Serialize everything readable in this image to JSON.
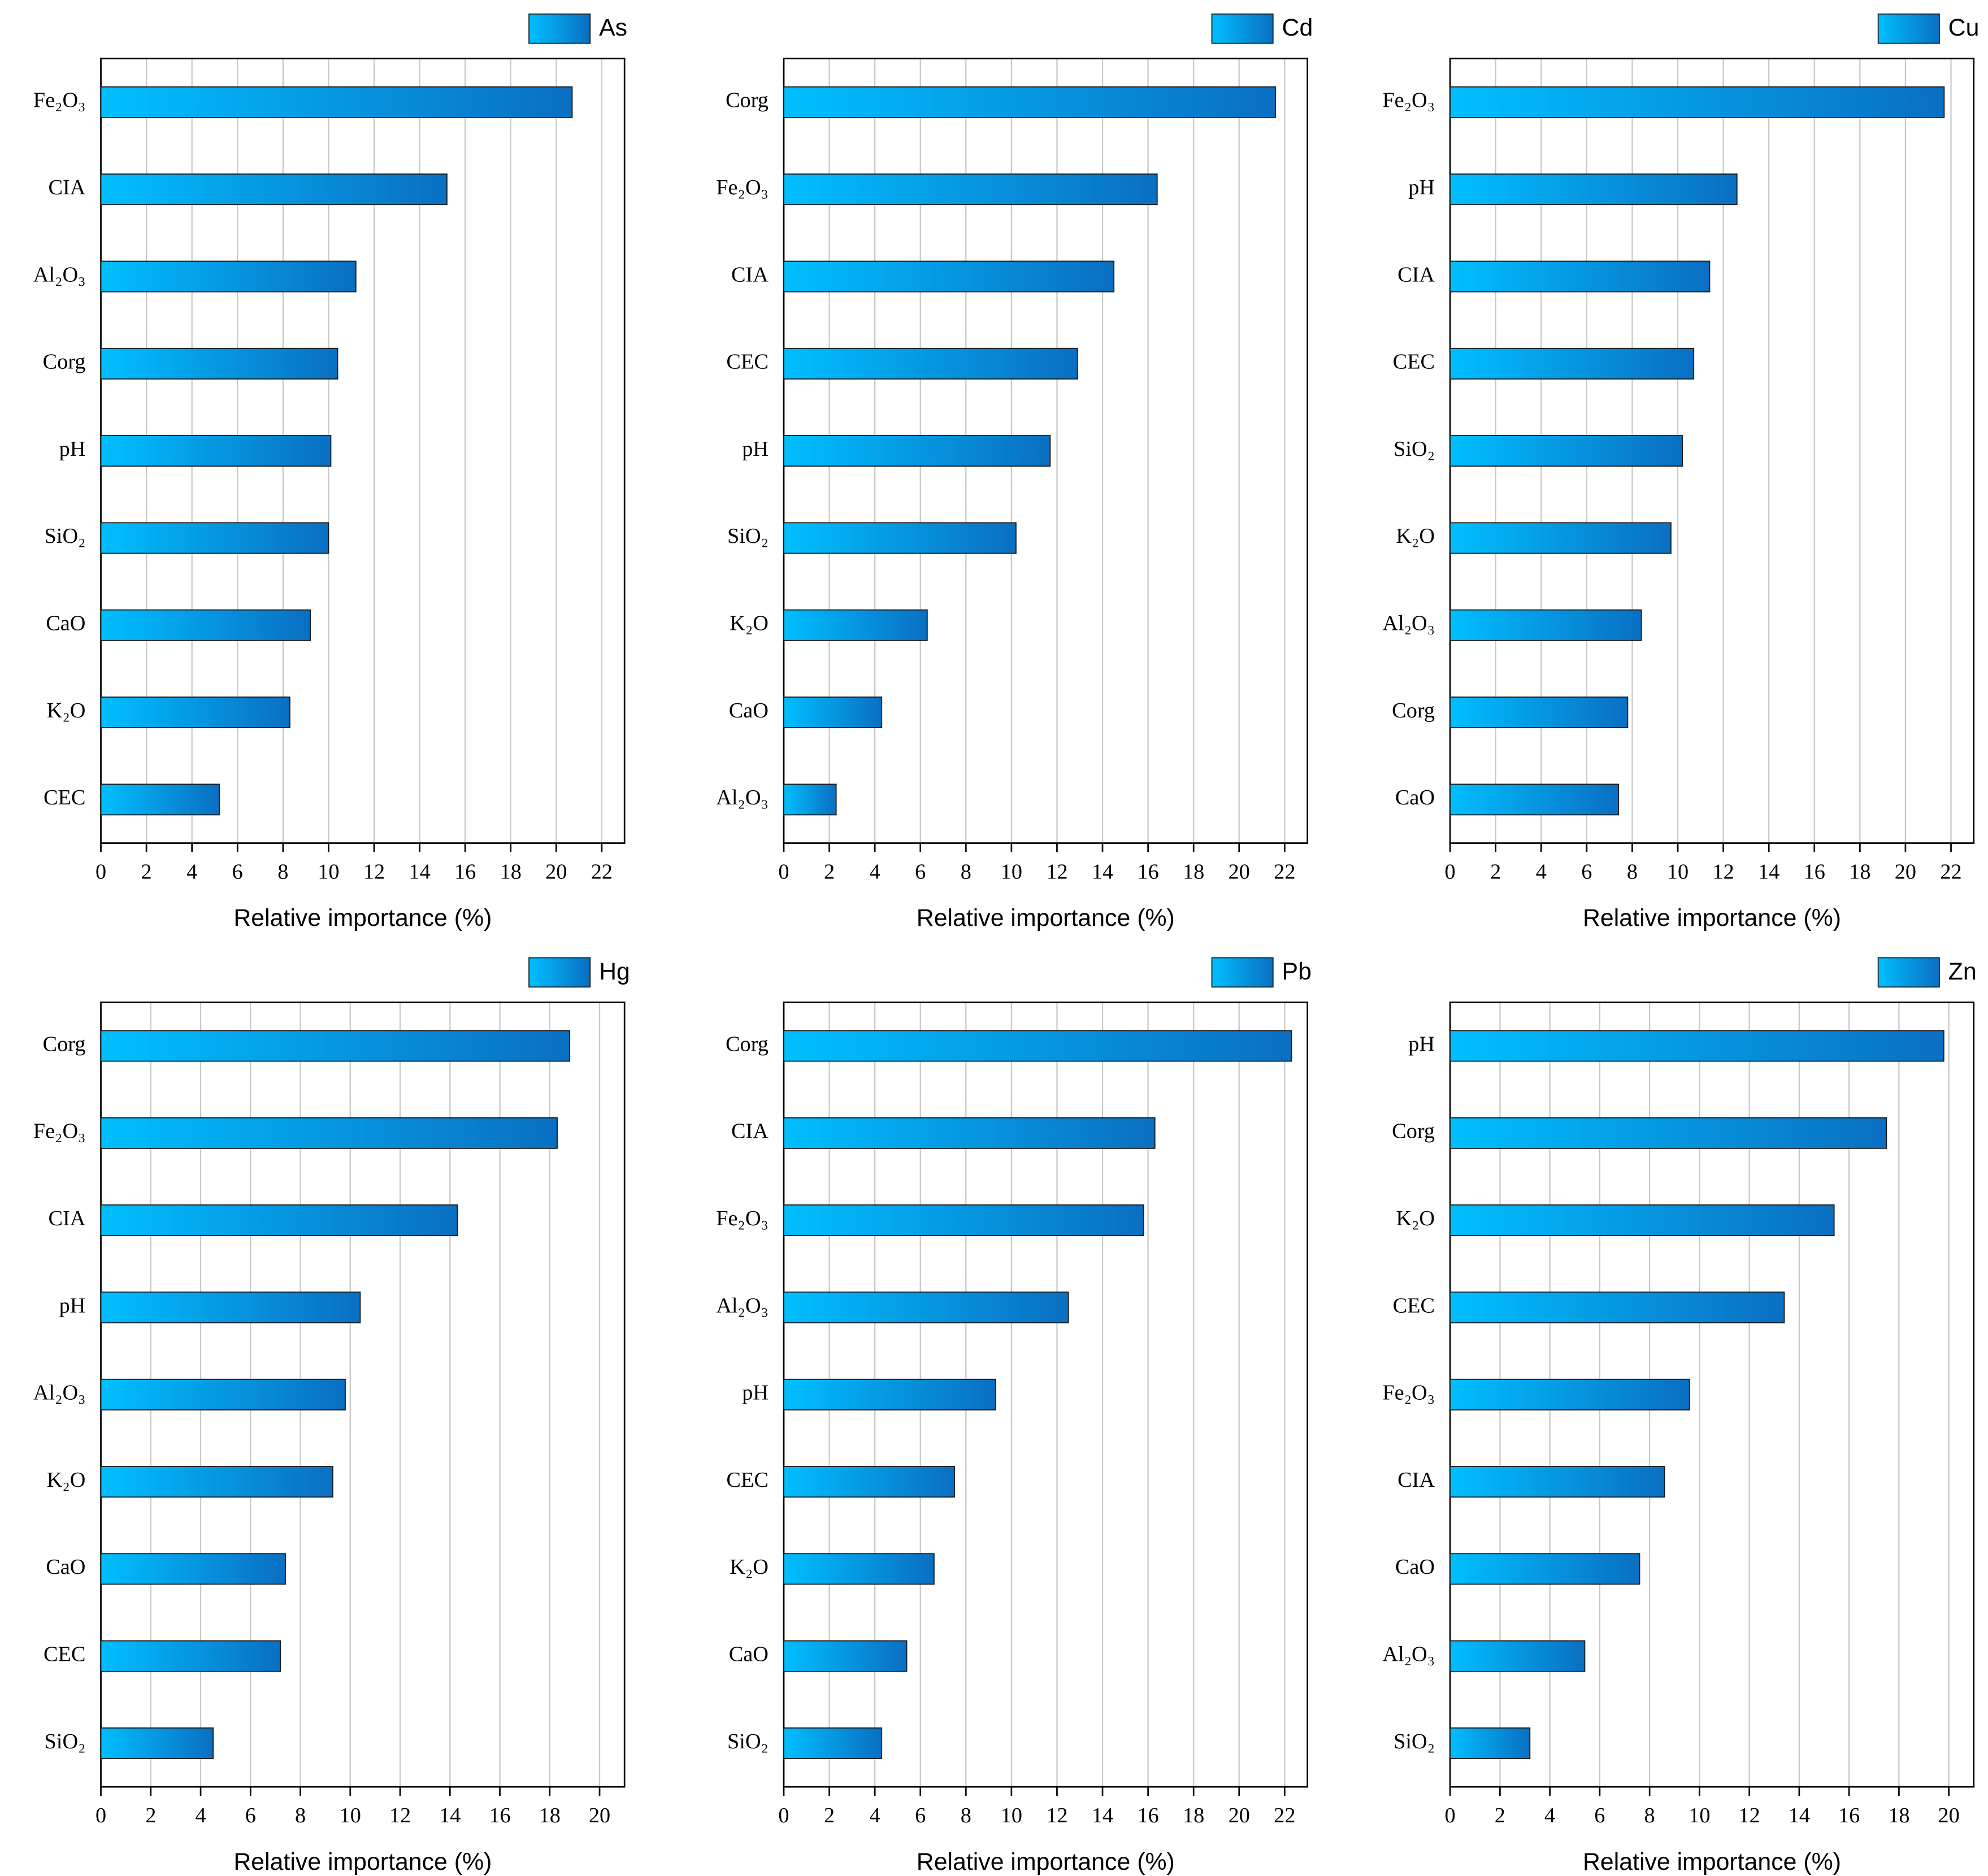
{
  "chart_data": [
    {
      "type": "bar",
      "orientation": "horizontal",
      "categories": [
        "Fe₂O₃",
        "CIA",
        "Al₂O₃",
        "Corg",
        "pH",
        "SiO₂",
        "CaO",
        "K₂O",
        "CEC"
      ],
      "series": [
        {
          "name": "As",
          "gradient": [
            "#00bfff",
            "#0a6fc2"
          ],
          "values": [
            20.7,
            15.2,
            11.2,
            10.4,
            10.1,
            10.0,
            9.2,
            8.3,
            5.2
          ]
        }
      ],
      "xlim": [
        0,
        23
      ],
      "xticks": [
        0,
        2,
        4,
        6,
        8,
        10,
        12,
        14,
        16,
        18,
        20,
        22
      ],
      "xlabel": "Relative importance (%)",
      "grid": true,
      "legend": "top-right"
    },
    {
      "type": "bar",
      "orientation": "horizontal",
      "categories": [
        "Corg",
        "Fe₂O₃",
        "CIA",
        "CEC",
        "pH",
        "SiO₂",
        "K₂O",
        "CaO",
        "Al₂O₃"
      ],
      "series": [
        {
          "name": "Cd",
          "gradient": [
            "#00bfff",
            "#0a6fc2"
          ],
          "values": [
            21.6,
            16.4,
            14.5,
            12.9,
            11.7,
            10.2,
            6.3,
            4.3,
            2.3
          ]
        }
      ],
      "xlim": [
        0,
        23
      ],
      "xticks": [
        0,
        2,
        4,
        6,
        8,
        10,
        12,
        14,
        16,
        18,
        20,
        22
      ],
      "xlabel": "Relative importance (%)",
      "grid": true,
      "legend": "top-right"
    },
    {
      "type": "bar",
      "orientation": "horizontal",
      "categories": [
        "Fe₂O₃",
        "pH",
        "CIA",
        "CEC",
        "SiO₂",
        "K₂O",
        "Al₂O₃",
        "Corg",
        "CaO"
      ],
      "series": [
        {
          "name": "Cu",
          "gradient": [
            "#00bfff",
            "#0a6fc2"
          ],
          "values": [
            21.7,
            12.6,
            11.4,
            10.7,
            10.2,
            9.7,
            8.4,
            7.8,
            7.4
          ]
        }
      ],
      "xlim": [
        0,
        23
      ],
      "xticks": [
        0,
        2,
        4,
        6,
        8,
        10,
        12,
        14,
        16,
        18,
        20,
        22
      ],
      "xlabel": "Relative importance (%)",
      "grid": true,
      "legend": "top-right"
    },
    {
      "type": "bar",
      "orientation": "horizontal",
      "categories": [
        "Corg",
        "Fe₂O₃",
        "CIA",
        "pH",
        "Al₂O₃",
        "K₂O",
        "CaO",
        "CEC",
        "SiO₂"
      ],
      "series": [
        {
          "name": "Hg",
          "gradient": [
            "#00bfff",
            "#0a6fc2"
          ],
          "values": [
            18.8,
            18.3,
            14.3,
            10.4,
            9.8,
            9.3,
            7.4,
            7.2,
            4.5
          ]
        }
      ],
      "xlim": [
        0,
        21
      ],
      "xticks": [
        0,
        2,
        4,
        6,
        8,
        10,
        12,
        14,
        16,
        18,
        20
      ],
      "xlabel": "Relative importance (%)",
      "grid": true,
      "legend": "top-right"
    },
    {
      "type": "bar",
      "orientation": "horizontal",
      "categories": [
        "Corg",
        "CIA",
        "Fe₂O₃",
        "Al₂O₃",
        "pH",
        "CEC",
        "K₂O",
        "CaO",
        "SiO₂"
      ],
      "series": [
        {
          "name": "Pb",
          "gradient": [
            "#00bfff",
            "#0a6fc2"
          ],
          "values": [
            22.3,
            16.3,
            15.8,
            12.5,
            9.3,
            7.5,
            6.6,
            5.4,
            4.3
          ]
        }
      ],
      "xlim": [
        0,
        23
      ],
      "xticks": [
        0,
        2,
        4,
        6,
        8,
        10,
        12,
        14,
        16,
        18,
        20,
        22
      ],
      "xlabel": "Relative importance (%)",
      "grid": true,
      "legend": "top-right"
    },
    {
      "type": "bar",
      "orientation": "horizontal",
      "categories": [
        "pH",
        "Corg",
        "K₂O",
        "CEC",
        "Fe₂O₃",
        "CIA",
        "CaO",
        "Al₂O₃",
        "SiO₂"
      ],
      "series": [
        {
          "name": "Zn",
          "gradient": [
            "#00bfff",
            "#0a6fc2"
          ],
          "values": [
            19.8,
            17.5,
            15.4,
            13.4,
            9.6,
            8.6,
            7.6,
            5.4,
            3.2
          ]
        }
      ],
      "xlim": [
        0,
        21
      ],
      "xticks": [
        0,
        2,
        4,
        6,
        8,
        10,
        12,
        14,
        16,
        18,
        20
      ],
      "xlabel": "Relative importance (%)",
      "grid": true,
      "legend": "top-right"
    }
  ]
}
